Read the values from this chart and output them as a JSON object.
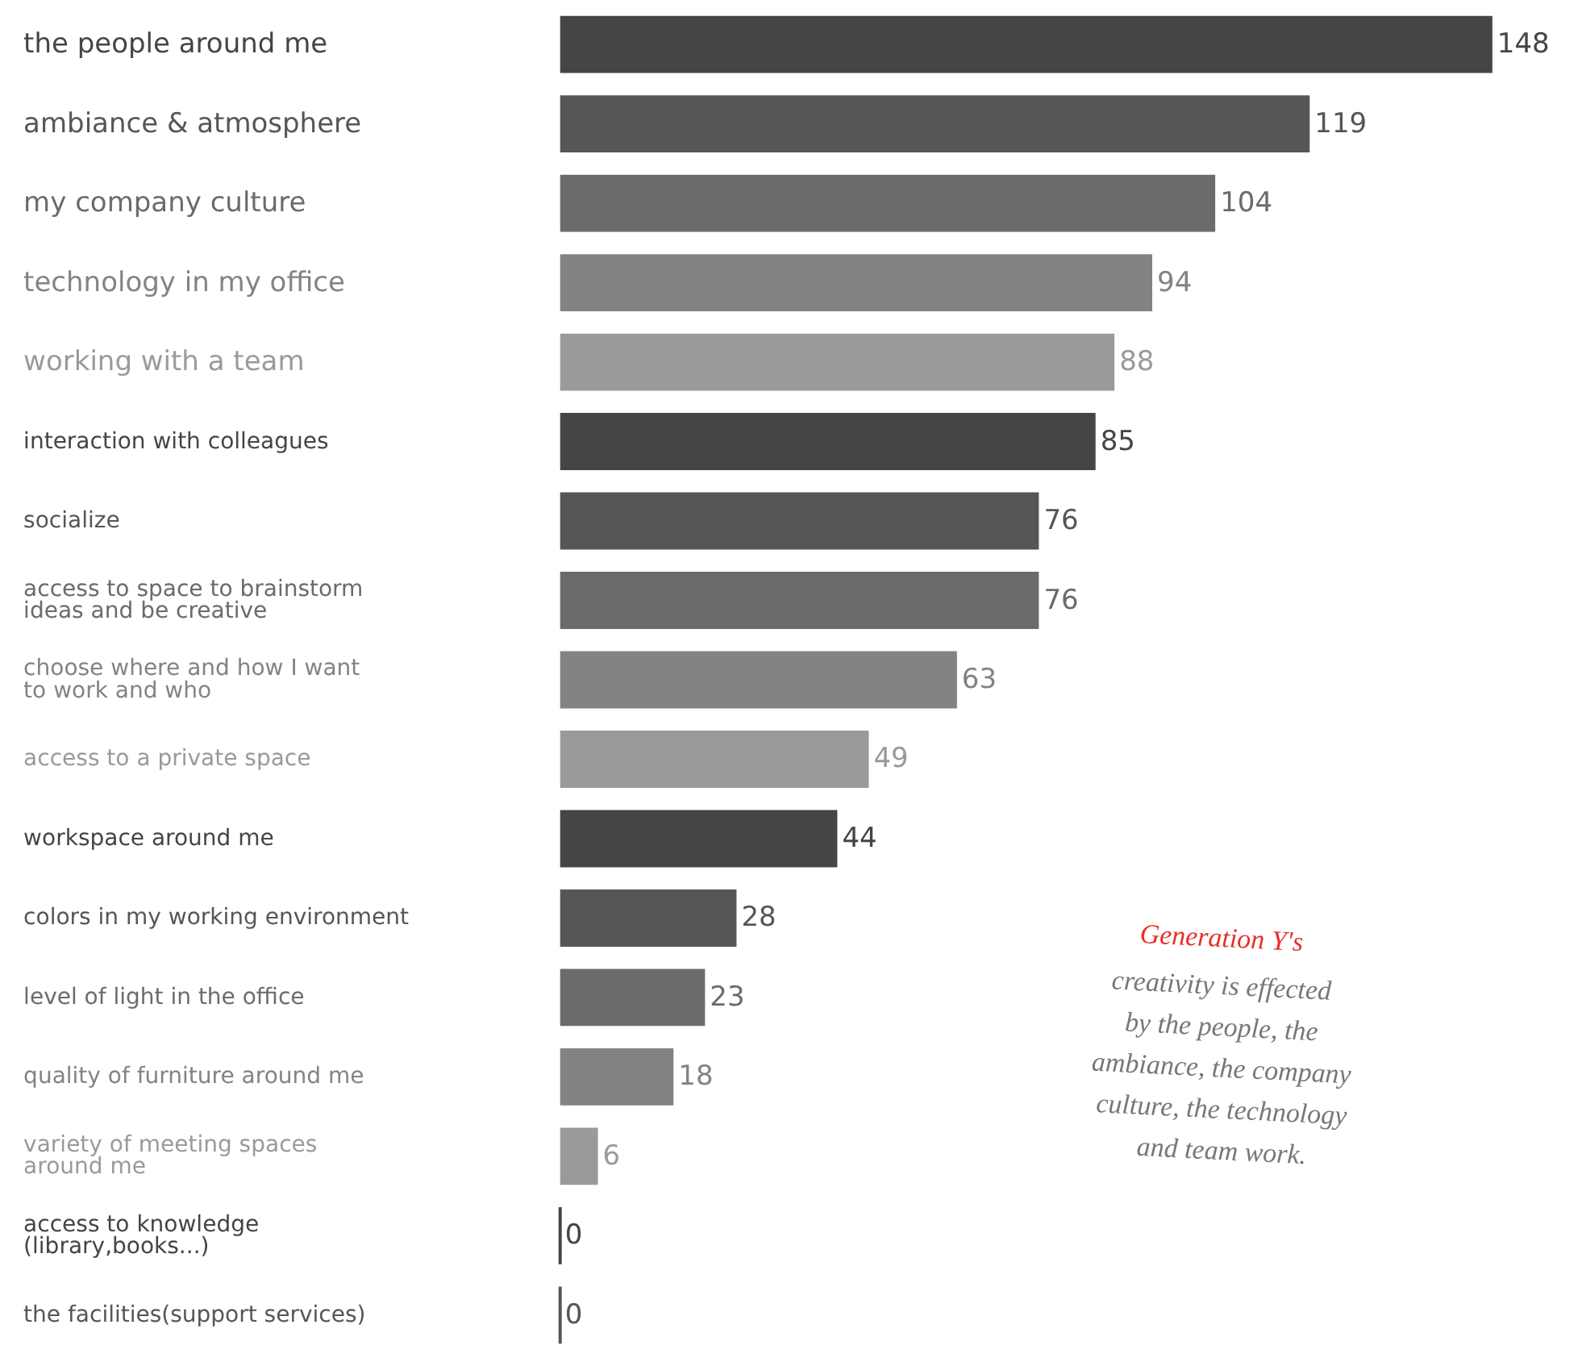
{
  "chart_data": {
    "type": "bar",
    "orientation": "horizontal",
    "data_labels": true,
    "grid": false,
    "categories": [
      "the people around me",
      "ambiance & atmosphere",
      "my company culture",
      "technology in my office",
      "working with a team",
      "interaction with colleagues",
      "socialize",
      "access to space to brainstorm ideas and be creative",
      "choose where and how I want to work and who",
      "access to a private space",
      "workspace around me",
      "colors in my working environment",
      "level of light in the office",
      "quality of furniture around me",
      "variety of meeting spaces around me",
      "access to knowledge (library,books...)",
      "the facilities(support services)"
    ],
    "values": [
      148,
      119,
      104,
      94,
      88,
      85,
      76,
      76,
      63,
      49,
      44,
      28,
      23,
      18,
      6,
      0,
      0
    ],
    "colors": [
      "#444545",
      "#555656",
      "#6b6b6b",
      "#838383",
      "#9a9a9a",
      "#444545",
      "#555656",
      "#6b6b6b",
      "#838383",
      "#9a9a9a",
      "#444545",
      "#555656",
      "#6b6b6b",
      "#838383",
      "#9a9a9a",
      "#444545",
      "#555656"
    ],
    "annotations": [
      "Generation Y's",
      "creativity is effected by the people, the ambiance, the company culture, the technology and team work."
    ]
  }
}
